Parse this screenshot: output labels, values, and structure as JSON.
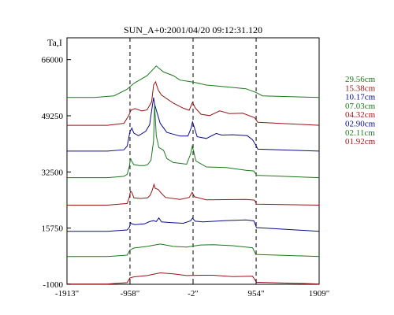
{
  "chart_data": {
    "type": "line",
    "title": "SUN_A+0:2001/04/20 09:12:31.120",
    "ylabel": "Ta,I",
    "xlabel": "",
    "x_ticks": [
      "-1913\"",
      "-958\"",
      "-2\"",
      "954\"",
      "1909\""
    ],
    "x_tick_values": [
      -1913,
      -958,
      -2,
      954,
      1909
    ],
    "y_ticks": [
      "66000",
      "49250",
      "32500",
      "15750",
      "-1000"
    ],
    "y_tick_values": [
      66000,
      49250,
      32500,
      15750,
      -1000
    ],
    "xlim": [
      -1913,
      1909
    ],
    "ylim": [
      -1000,
      72500
    ],
    "grid": false,
    "vlines": [
      -958,
      -2,
      954
    ],
    "legend_position": "right",
    "series_colors": {
      "green": "#1a7a1a",
      "red": "#9a1414",
      "blue": "#0a0a8a"
    },
    "series": [
      {
        "name": "29.56cm",
        "color": "green",
        "baseline": 54700,
        "points": [
          [
            -1913,
            0
          ],
          [
            -1500,
            0
          ],
          [
            -1200,
            500
          ],
          [
            -1000,
            2500
          ],
          [
            -900,
            4200
          ],
          [
            -700,
            6500
          ],
          [
            -560,
            9400
          ],
          [
            -450,
            7600
          ],
          [
            -300,
            6500
          ],
          [
            -200,
            5200
          ],
          [
            -2,
            4600
          ],
          [
            200,
            3700
          ],
          [
            500,
            3200
          ],
          [
            800,
            2600
          ],
          [
            954,
            1500
          ],
          [
            1050,
            500
          ],
          [
            1909,
            0
          ]
        ]
      },
      {
        "name": "15.38cm",
        "color": "red",
        "baseline": 46400,
        "points": [
          [
            -1913,
            0
          ],
          [
            -1300,
            0
          ],
          [
            -1050,
            600
          ],
          [
            -980,
            2800
          ],
          [
            -940,
            4600
          ],
          [
            -880,
            5000
          ],
          [
            -780,
            4300
          ],
          [
            -700,
            4600
          ],
          [
            -630,
            7000
          ],
          [
            -600,
            12000
          ],
          [
            -570,
            13000
          ],
          [
            -530,
            10500
          ],
          [
            -480,
            9000
          ],
          [
            -300,
            6600
          ],
          [
            -150,
            5100
          ],
          [
            -60,
            4500
          ],
          [
            -10,
            6900
          ],
          [
            30,
            5200
          ],
          [
            120,
            3300
          ],
          [
            250,
            2900
          ],
          [
            400,
            4300
          ],
          [
            550,
            3500
          ],
          [
            750,
            3600
          ],
          [
            930,
            2300
          ],
          [
            980,
            900
          ],
          [
            1909,
            0
          ]
        ]
      },
      {
        "name": "10.17cm",
        "color": "blue",
        "baseline": 38700,
        "points": [
          [
            -1913,
            0
          ],
          [
            -1300,
            0
          ],
          [
            -1050,
            400
          ],
          [
            -1000,
            1500
          ],
          [
            -960,
            5700
          ],
          [
            -930,
            6900
          ],
          [
            -900,
            5400
          ],
          [
            -830,
            4600
          ],
          [
            -720,
            5900
          ],
          [
            -660,
            7900
          ],
          [
            -620,
            13500
          ],
          [
            -600,
            16000
          ],
          [
            -585,
            14000
          ],
          [
            -560,
            12300
          ],
          [
            -500,
            8300
          ],
          [
            -400,
            5600
          ],
          [
            -200,
            4500
          ],
          [
            -80,
            4500
          ],
          [
            -30,
            7000
          ],
          [
            -10,
            8700
          ],
          [
            10,
            7500
          ],
          [
            60,
            4300
          ],
          [
            200,
            3800
          ],
          [
            350,
            5300
          ],
          [
            430,
            4800
          ],
          [
            600,
            4900
          ],
          [
            820,
            4600
          ],
          [
            900,
            3400
          ],
          [
            940,
            2100
          ],
          [
            980,
            600
          ],
          [
            1909,
            0
          ]
        ]
      },
      {
        "name": "07.03cm",
        "color": "green",
        "baseline": 30800,
        "points": [
          [
            -1913,
            0
          ],
          [
            -1300,
            0
          ],
          [
            -1050,
            400
          ],
          [
            -1000,
            1000
          ],
          [
            -965,
            3600
          ],
          [
            -950,
            5800
          ],
          [
            -935,
            5000
          ],
          [
            -900,
            3900
          ],
          [
            -820,
            3600
          ],
          [
            -740,
            3600
          ],
          [
            -690,
            3900
          ],
          [
            -640,
            5200
          ],
          [
            -600,
            11000
          ],
          [
            -585,
            21700
          ],
          [
            -570,
            16500
          ],
          [
            -560,
            12500
          ],
          [
            -520,
            9000
          ],
          [
            -450,
            8200
          ],
          [
            -400,
            5700
          ],
          [
            -300,
            4500
          ],
          [
            -100,
            4000
          ],
          [
            -40,
            7000
          ],
          [
            -15,
            9300
          ],
          [
            5,
            8000
          ],
          [
            40,
            5000
          ],
          [
            200,
            3200
          ],
          [
            500,
            3000
          ],
          [
            800,
            2200
          ],
          [
            920,
            2000
          ],
          [
            960,
            700
          ],
          [
            1909,
            0
          ]
        ]
      },
      {
        "name": "04.32cm",
        "color": "red",
        "baseline": 22600,
        "points": [
          [
            -1913,
            0
          ],
          [
            -1300,
            0
          ],
          [
            -1000,
            500
          ],
          [
            -970,
            2300
          ],
          [
            -950,
            4200
          ],
          [
            -930,
            3800
          ],
          [
            -900,
            2200
          ],
          [
            -800,
            2000
          ],
          [
            -690,
            2200
          ],
          [
            -650,
            3000
          ],
          [
            -620,
            4500
          ],
          [
            -595,
            6200
          ],
          [
            -575,
            5000
          ],
          [
            -530,
            4700
          ],
          [
            -490,
            3700
          ],
          [
            -420,
            2300
          ],
          [
            -200,
            1700
          ],
          [
            -60,
            2300
          ],
          [
            -15,
            3800
          ],
          [
            20,
            2500
          ],
          [
            200,
            1600
          ],
          [
            800,
            1700
          ],
          [
            930,
            1500
          ],
          [
            960,
            300
          ],
          [
            1909,
            0
          ]
        ]
      },
      {
        "name": "02.90cm",
        "color": "blue",
        "baseline": 14800,
        "points": [
          [
            -1913,
            0
          ],
          [
            -1300,
            0
          ],
          [
            -1000,
            400
          ],
          [
            -965,
            1300
          ],
          [
            -950,
            2600
          ],
          [
            -930,
            2200
          ],
          [
            -880,
            2000
          ],
          [
            -740,
            2200
          ],
          [
            -660,
            2900
          ],
          [
            -600,
            3200
          ],
          [
            -560,
            2900
          ],
          [
            -520,
            4000
          ],
          [
            -480,
            2800
          ],
          [
            -350,
            2600
          ],
          [
            -150,
            2400
          ],
          [
            -40,
            3100
          ],
          [
            -10,
            3900
          ],
          [
            30,
            3000
          ],
          [
            150,
            2800
          ],
          [
            500,
            3200
          ],
          [
            800,
            3400
          ],
          [
            920,
            3100
          ],
          [
            960,
            1100
          ],
          [
            1909,
            0
          ]
        ]
      },
      {
        "name": "02.11cm",
        "color": "green",
        "baseline": 7300,
        "points": [
          [
            -1913,
            0
          ],
          [
            -1300,
            0
          ],
          [
            -1000,
            400
          ],
          [
            -960,
            1900
          ],
          [
            -900,
            2500
          ],
          [
            -700,
            3000
          ],
          [
            -500,
            3700
          ],
          [
            -300,
            3000
          ],
          [
            -100,
            2800
          ],
          [
            100,
            3400
          ],
          [
            300,
            3500
          ],
          [
            600,
            3200
          ],
          [
            900,
            2600
          ],
          [
            950,
            600
          ],
          [
            1909,
            0
          ]
        ]
      },
      {
        "name": "01.92cm",
        "color": "red",
        "baseline": -900,
        "points": [
          [
            -1913,
            0
          ],
          [
            -1300,
            0
          ],
          [
            -1000,
            400
          ],
          [
            -960,
            1800
          ],
          [
            -900,
            2100
          ],
          [
            -700,
            2500
          ],
          [
            -500,
            3300
          ],
          [
            -300,
            3000
          ],
          [
            -100,
            2500
          ],
          [
            100,
            2600
          ],
          [
            300,
            2600
          ],
          [
            600,
            2200
          ],
          [
            900,
            2300
          ],
          [
            960,
            500
          ],
          [
            1909,
            0
          ]
        ]
      }
    ]
  }
}
